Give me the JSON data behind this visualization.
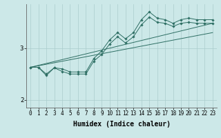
{
  "bg_color": "#cce8e8",
  "line_color": "#2d6e63",
  "grid_color": "#aacccc",
  "xlabel": "Humidex (Indice chaleur)",
  "xlabel_fontsize": 7,
  "tick_fontsize": 5.5,
  "xlim": [
    -0.5,
    23.5
  ],
  "ylim": [
    1.85,
    3.85
  ],
  "yticks": [
    2,
    3
  ],
  "xticks": [
    0,
    1,
    2,
    3,
    4,
    5,
    6,
    7,
    8,
    9,
    10,
    11,
    12,
    13,
    14,
    15,
    16,
    17,
    18,
    19,
    20,
    21,
    22,
    23
  ],
  "series_marked_1": {
    "x": [
      0,
      1,
      2,
      3,
      4,
      5,
      6,
      7,
      8,
      9,
      10,
      11,
      12,
      13,
      14,
      15,
      16,
      17,
      18,
      19,
      20,
      21,
      22,
      23
    ],
    "y": [
      2.63,
      2.63,
      2.47,
      2.62,
      2.55,
      2.5,
      2.5,
      2.5,
      2.75,
      2.88,
      3.08,
      3.22,
      3.1,
      3.22,
      3.45,
      3.6,
      3.5,
      3.48,
      3.42,
      3.48,
      3.5,
      3.48,
      3.48,
      3.48
    ]
  },
  "series_marked_2": {
    "x": [
      0,
      1,
      2,
      3,
      4,
      5,
      6,
      7,
      8,
      9,
      10,
      11,
      12,
      13,
      14,
      15,
      16,
      17,
      18,
      19,
      20,
      21,
      22,
      23
    ],
    "y": [
      2.63,
      2.63,
      2.5,
      2.62,
      2.6,
      2.54,
      2.54,
      2.54,
      2.8,
      2.95,
      3.16,
      3.3,
      3.18,
      3.3,
      3.55,
      3.7,
      3.58,
      3.55,
      3.48,
      3.55,
      3.58,
      3.55,
      3.55,
      3.55
    ]
  },
  "straight_line_1": {
    "x": [
      0,
      23
    ],
    "y": [
      2.63,
      3.48
    ]
  },
  "straight_line_2": {
    "x": [
      0,
      23
    ],
    "y": [
      2.63,
      3.3
    ]
  }
}
